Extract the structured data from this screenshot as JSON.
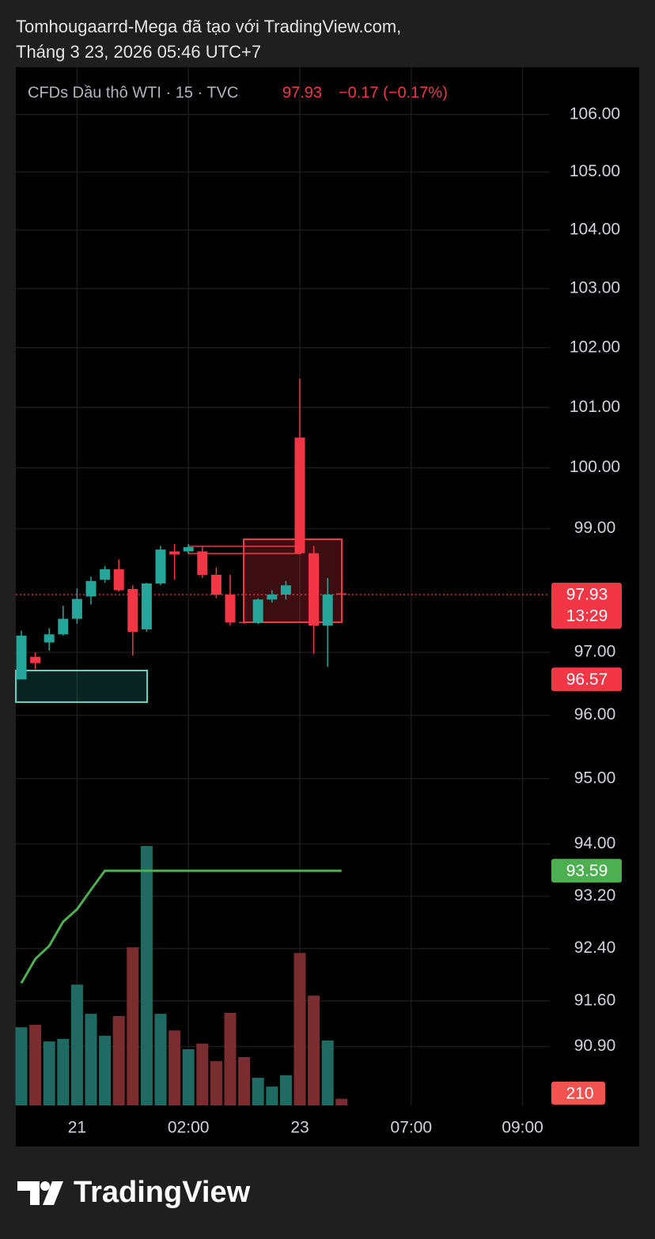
{
  "header": {
    "line1": "Tomhougaarrd-Mega đã tạo với TradingView.com,",
    "line2": "Tháng 3 23, 2026 05:46 UTC+7"
  },
  "chart_data": {
    "type": "candlestick",
    "symbol": "CFDs Dầu thô WTI · 15 · TVC",
    "price_text": "97.93",
    "change_text": "−0.17 (−0.17%)",
    "categories": [
      null,
      null,
      null,
      null,
      "21",
      null,
      null,
      null,
      null,
      null,
      null,
      null,
      "02:00",
      null,
      null,
      null,
      null,
      null,
      null,
      null,
      "23",
      null,
      null,
      null,
      null,
      null,
      null,
      null,
      "07:00",
      null,
      null,
      null,
      null,
      null,
      null,
      null,
      "09:00"
    ],
    "open": [
      96.57,
      96.93,
      97.16,
      97.29,
      97.54,
      97.9,
      98.17,
      98.34,
      98.02,
      97.37,
      98.11,
      98.63,
      98.63,
      98.63,
      98.25,
      97.93,
      97.49,
      97.48,
      97.85,
      97.93,
      100.5,
      98.6,
      97.43,
      97.95,
      null,
      null,
      null,
      null,
      null,
      null,
      null,
      null,
      null,
      null,
      null,
      null,
      null
    ],
    "high": [
      97.35,
      97.0,
      97.39,
      97.75,
      98.03,
      98.22,
      98.39,
      98.5,
      98.08,
      98.12,
      98.72,
      98.75,
      98.75,
      98.72,
      98.37,
      98.25,
      97.51,
      97.87,
      98.0,
      98.15,
      101.48,
      98.72,
      98.2,
      97.96,
      null,
      null,
      null,
      null,
      null,
      null,
      null,
      null,
      null,
      null,
      null,
      null,
      null
    ],
    "low": [
      96.57,
      96.73,
      97.03,
      97.27,
      97.46,
      97.77,
      98.12,
      97.98,
      96.95,
      97.33,
      98.08,
      98.17,
      98.6,
      98.2,
      97.87,
      97.43,
      97.46,
      97.46,
      97.8,
      97.85,
      98.6,
      96.98,
      96.77,
      97.92,
      null,
      null,
      null,
      null,
      null,
      null,
      null,
      null,
      null,
      null,
      null,
      null,
      null
    ],
    "close": [
      97.27,
      96.83,
      97.29,
      97.54,
      97.86,
      98.15,
      98.34,
      98.0,
      97.33,
      98.11,
      98.66,
      98.58,
      98.7,
      98.25,
      97.93,
      97.48,
      97.48,
      97.85,
      97.93,
      98.08,
      98.6,
      97.43,
      97.93,
      97.93,
      null,
      null,
      null,
      null,
      null,
      null,
      null,
      null,
      null,
      null,
      null,
      null,
      null
    ],
    "up_color": "#26a69a",
    "down_color": "#f23645",
    "ylim": [
      94.32,
      106.83
    ],
    "log_scale": true,
    "grid": true,
    "yticks": [
      {
        "value": 95,
        "label": "95.00"
      },
      {
        "value": 96,
        "label": "96.00"
      },
      {
        "value": 97,
        "label": "97.00"
      },
      {
        "value": 99,
        "label": "99.00"
      },
      {
        "value": 100,
        "label": "100.00"
      },
      {
        "value": 101,
        "label": "101.00"
      },
      {
        "value": 102,
        "label": "102.00"
      },
      {
        "value": 103,
        "label": "103.00"
      },
      {
        "value": 104,
        "label": "104.00"
      },
      {
        "value": 105,
        "label": "105.00"
      },
      {
        "value": 106,
        "label": "106.00"
      }
    ],
    "last_price": {
      "value": 97.93,
      "label": "97.93"
    },
    "countdown": "13:29",
    "marker_price": {
      "value": 96.57,
      "label": "96.57"
    },
    "volume": {
      "values": [
        2490,
        2570,
        2040,
        2120,
        3850,
        2920,
        2220,
        2850,
        5040,
        8270,
        2920,
        2390,
        1790,
        1970,
        1410,
        2950,
        1540,
        880,
        600,
        960,
        4860,
        3500,
        2070,
        210,
        null,
        null,
        null,
        null,
        null,
        null,
        null,
        null,
        null,
        null,
        null,
        null,
        null
      ],
      "up_color": "#1f6b64",
      "down_color": "#7a2d2f",
      "ylim": [
        0,
        8900
      ]
    },
    "indicator": {
      "values": [
        91.87,
        92.24,
        92.44,
        92.81,
        93.0,
        93.3,
        93.59,
        93.59,
        93.59,
        93.59,
        93.59,
        93.59,
        93.59,
        93.59,
        93.59,
        93.59,
        93.59,
        93.59,
        93.59,
        93.59,
        93.59,
        93.59,
        93.59,
        93.59,
        null,
        null,
        null,
        null,
        null,
        null,
        null,
        null,
        null,
        null,
        null,
        null,
        null
      ],
      "value_labels": [
        null,
        null,
        null,
        null,
        null,
        null,
        null,
        null,
        null,
        null,
        null,
        null,
        null,
        null,
        null,
        null,
        null,
        null,
        null,
        null,
        null,
        null,
        null,
        "93.59",
        null,
        null,
        null,
        null,
        null,
        null,
        null,
        null,
        null,
        null,
        null,
        null,
        null
      ],
      "color": "#4caf50",
      "ylim": [
        90,
        94.27
      ],
      "yticks": [
        {
          "value": 90.9,
          "label": "90.90"
        },
        {
          "value": 91.6,
          "label": "91.60"
        },
        {
          "value": 92.4,
          "label": "92.40"
        },
        {
          "value": 93.2,
          "label": "93.20"
        },
        {
          "value": 94,
          "label": "94.00"
        }
      ]
    }
  },
  "footer": {
    "brand": "TradingView"
  }
}
